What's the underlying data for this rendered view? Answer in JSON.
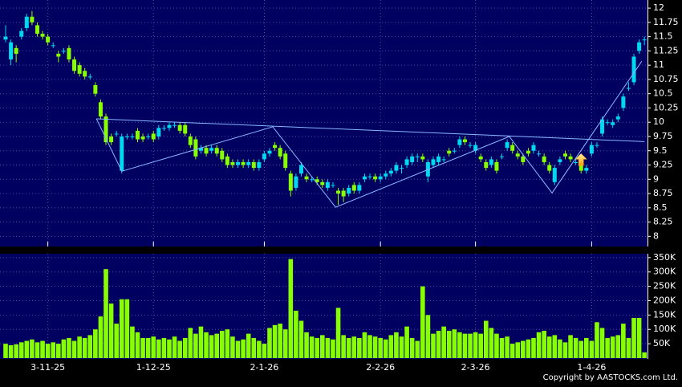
{
  "chart_data": {
    "type": "candlestick",
    "categories": [
      null,
      null,
      null,
      null,
      null,
      null,
      null,
      null,
      "3-11-25",
      null,
      null,
      null,
      null,
      null,
      null,
      null,
      null,
      null,
      null,
      null,
      null,
      null,
      null,
      null,
      null,
      null,
      null,
      null,
      "1-12-25",
      null,
      null,
      null,
      null,
      null,
      null,
      null,
      null,
      null,
      null,
      null,
      null,
      null,
      null,
      null,
      null,
      null,
      null,
      null,
      null,
      "2-1-26",
      null,
      null,
      null,
      null,
      null,
      null,
      null,
      null,
      null,
      null,
      null,
      null,
      null,
      null,
      null,
      null,
      null,
      null,
      null,
      null,
      null,
      "2-2-26",
      null,
      null,
      null,
      null,
      null,
      null,
      null,
      null,
      null,
      null,
      null,
      null,
      null,
      null,
      null,
      null,
      null,
      "2-3-26",
      null,
      null,
      null,
      null,
      null,
      null,
      null,
      null,
      null,
      null,
      null,
      null,
      null,
      null,
      null,
      null,
      null,
      null,
      null,
      null,
      null,
      "1-4-26",
      null,
      null,
      null,
      null,
      null,
      null,
      null,
      null,
      null,
      null
    ],
    "candles": [
      [
        11.45,
        11.7,
        11.4,
        11.5
      ],
      [
        11.1,
        11.45,
        11.0,
        11.4
      ],
      [
        11.3,
        11.35,
        11.05,
        11.2
      ],
      [
        11.5,
        11.65,
        11.45,
        11.6
      ],
      [
        11.65,
        11.9,
        11.6,
        11.85
      ],
      [
        11.85,
        11.95,
        11.7,
        11.75
      ],
      [
        11.7,
        11.75,
        11.5,
        11.55
      ],
      [
        11.55,
        11.6,
        11.45,
        11.5
      ],
      [
        11.5,
        11.55,
        11.35,
        11.4
      ],
      [
        11.35,
        11.4,
        11.3,
        11.35
      ],
      [
        11.2,
        11.25,
        11.05,
        11.15
      ],
      [
        11.25,
        11.3,
        11.2,
        11.25
      ],
      [
        11.3,
        11.35,
        11.05,
        11.1
      ],
      [
        11.1,
        11.15,
        10.85,
        10.9
      ],
      [
        11.0,
        11.05,
        10.8,
        10.85
      ],
      [
        10.9,
        10.95,
        10.75,
        10.8
      ],
      [
        10.8,
        10.85,
        10.75,
        10.8
      ],
      [
        10.65,
        10.7,
        10.45,
        10.5
      ],
      [
        10.35,
        10.4,
        10.05,
        10.1
      ],
      [
        10.1,
        10.15,
        9.6,
        9.65
      ],
      [
        9.75,
        9.8,
        9.6,
        9.65
      ],
      [
        9.8,
        9.85,
        9.75,
        9.8
      ],
      [
        9.15,
        9.8,
        9.1,
        9.75
      ],
      [
        9.75,
        9.8,
        9.7,
        9.75
      ],
      [
        9.75,
        9.8,
        9.7,
        9.75
      ],
      [
        9.85,
        9.9,
        9.65,
        9.7
      ],
      [
        9.75,
        9.8,
        9.65,
        9.7
      ],
      [
        9.75,
        9.8,
        9.7,
        9.75
      ],
      [
        9.8,
        9.85,
        9.65,
        9.7
      ],
      [
        9.75,
        9.95,
        9.7,
        9.9
      ],
      [
        9.9,
        9.95,
        9.85,
        9.9
      ],
      [
        9.9,
        10.0,
        9.85,
        9.95
      ],
      [
        9.95,
        10.0,
        9.9,
        9.95
      ],
      [
        9.95,
        10.0,
        9.8,
        9.85
      ],
      [
        9.95,
        10.0,
        9.75,
        9.8
      ],
      [
        9.75,
        9.8,
        9.55,
        9.6
      ],
      [
        9.7,
        9.75,
        9.35,
        9.4
      ],
      [
        9.5,
        9.6,
        9.45,
        9.55
      ],
      [
        9.55,
        9.6,
        9.4,
        9.45
      ],
      [
        9.5,
        9.6,
        9.45,
        9.55
      ],
      [
        9.55,
        9.6,
        9.4,
        9.45
      ],
      [
        9.5,
        9.55,
        9.3,
        9.35
      ],
      [
        9.4,
        9.45,
        9.2,
        9.25
      ],
      [
        9.3,
        9.35,
        9.2,
        9.25
      ],
      [
        9.25,
        9.35,
        9.2,
        9.3
      ],
      [
        9.3,
        9.35,
        9.2,
        9.25
      ],
      [
        9.25,
        9.35,
        9.2,
        9.3
      ],
      [
        9.3,
        9.35,
        9.15,
        9.2
      ],
      [
        9.2,
        9.35,
        9.15,
        9.3
      ],
      [
        9.35,
        9.5,
        9.3,
        9.45
      ],
      [
        9.45,
        9.55,
        9.4,
        9.5
      ],
      [
        9.6,
        9.65,
        9.5,
        9.55
      ],
      [
        9.55,
        9.6,
        9.35,
        9.4
      ],
      [
        9.45,
        9.5,
        9.15,
        9.2
      ],
      [
        9.1,
        9.15,
        8.7,
        8.8
      ],
      [
        8.85,
        9.1,
        8.8,
        9.05
      ],
      [
        9.1,
        9.3,
        9.05,
        9.25
      ],
      [
        9.05,
        9.1,
        8.95,
        9.0
      ],
      [
        9.0,
        9.05,
        8.95,
        9.0
      ],
      [
        9.0,
        9.05,
        8.9,
        8.95
      ],
      [
        8.95,
        9.0,
        8.85,
        8.9
      ],
      [
        8.85,
        9.0,
        8.8,
        8.95
      ],
      [
        8.9,
        8.95,
        8.85,
        8.9
      ],
      [
        8.8,
        8.85,
        8.55,
        8.75
      ],
      [
        8.8,
        8.85,
        8.6,
        8.7
      ],
      [
        8.75,
        8.9,
        8.7,
        8.85
      ],
      [
        8.9,
        8.95,
        8.75,
        8.8
      ],
      [
        8.8,
        8.95,
        8.75,
        8.9
      ],
      [
        9.0,
        9.1,
        8.95,
        9.05
      ],
      [
        9.05,
        9.1,
        9.0,
        9.05
      ],
      [
        9.05,
        9.1,
        8.95,
        9.0
      ],
      [
        9.0,
        9.1,
        8.95,
        9.05
      ],
      [
        9.05,
        9.15,
        9.0,
        9.1
      ],
      [
        9.1,
        9.2,
        9.05,
        9.15
      ],
      [
        9.15,
        9.3,
        9.1,
        9.25
      ],
      [
        9.2,
        9.25,
        9.1,
        9.2
      ],
      [
        9.25,
        9.4,
        9.2,
        9.35
      ],
      [
        9.3,
        9.45,
        9.25,
        9.4
      ],
      [
        9.4,
        9.45,
        9.3,
        9.4
      ],
      [
        9.4,
        9.45,
        9.3,
        9.35
      ],
      [
        9.05,
        9.35,
        8.95,
        9.3
      ],
      [
        9.25,
        9.4,
        9.2,
        9.35
      ],
      [
        9.3,
        9.45,
        9.25,
        9.4
      ],
      [
        9.35,
        9.4,
        9.3,
        9.35
      ],
      [
        9.5,
        9.55,
        9.4,
        9.45
      ],
      [
        9.5,
        9.55,
        9.45,
        9.5
      ],
      [
        9.6,
        9.75,
        9.55,
        9.7
      ],
      [
        9.7,
        9.75,
        9.6,
        9.65
      ],
      [
        9.6,
        9.65,
        9.55,
        9.6
      ],
      [
        9.5,
        9.65,
        9.45,
        9.6
      ],
      [
        9.4,
        9.45,
        9.3,
        9.35
      ],
      [
        9.3,
        9.35,
        9.15,
        9.2
      ],
      [
        9.25,
        9.4,
        9.2,
        9.35
      ],
      [
        9.3,
        9.35,
        9.1,
        9.15
      ],
      [
        9.4,
        9.45,
        9.35,
        9.4
      ],
      [
        9.55,
        9.7,
        9.5,
        9.65
      ],
      [
        9.6,
        9.65,
        9.45,
        9.5
      ],
      [
        9.45,
        9.5,
        9.35,
        9.4
      ],
      [
        9.4,
        9.45,
        9.25,
        9.3
      ],
      [
        9.5,
        9.55,
        9.4,
        9.45
      ],
      [
        9.5,
        9.65,
        9.45,
        9.6
      ],
      [
        9.45,
        9.5,
        9.4,
        9.45
      ],
      [
        9.4,
        9.45,
        9.25,
        9.3
      ],
      [
        9.25,
        9.3,
        9.1,
        9.15
      ],
      [
        8.95,
        9.25,
        8.9,
        9.2
      ],
      [
        9.3,
        9.4,
        9.25,
        9.35
      ],
      [
        9.45,
        9.5,
        9.35,
        9.4
      ],
      [
        9.4,
        9.45,
        9.3,
        9.35
      ],
      [
        9.3,
        9.35,
        9.25,
        9.3
      ],
      [
        9.25,
        9.3,
        9.1,
        9.15
      ],
      [
        9.15,
        9.25,
        9.1,
        9.2
      ],
      [
        9.45,
        9.65,
        9.4,
        9.6
      ],
      [
        9.6,
        9.65,
        9.55,
        9.6
      ],
      [
        9.8,
        10.1,
        9.75,
        10.05
      ],
      [
        10.0,
        10.05,
        9.95,
        10.0
      ],
      [
        9.95,
        10.05,
        9.9,
        10.0
      ],
      [
        10.05,
        10.15,
        10.0,
        10.1
      ],
      [
        10.25,
        10.5,
        10.2,
        10.45
      ],
      [
        10.6,
        10.7,
        10.55,
        10.6
      ],
      [
        10.7,
        11.2,
        10.65,
        11.15
      ],
      [
        11.25,
        11.45,
        11.2,
        11.4
      ],
      [
        11.45,
        11.5,
        11.35,
        11.45
      ]
    ],
    "volume": [
      50000,
      45000,
      48000,
      55000,
      60000,
      65000,
      55000,
      60000,
      50000,
      55000,
      50000,
      65000,
      70000,
      60000,
      75000,
      70000,
      80000,
      100000,
      145000,
      310000,
      190000,
      120000,
      205000,
      205000,
      110000,
      90000,
      70000,
      70000,
      75000,
      65000,
      70000,
      65000,
      75000,
      60000,
      70000,
      105000,
      85000,
      110000,
      90000,
      80000,
      85000,
      95000,
      100000,
      75000,
      60000,
      65000,
      85000,
      70000,
      60000,
      50000,
      105000,
      115000,
      120000,
      100000,
      345000,
      165000,
      130000,
      90000,
      75000,
      70000,
      80000,
      70000,
      65000,
      175000,
      80000,
      70000,
      75000,
      70000,
      90000,
      80000,
      75000,
      70000,
      65000,
      80000,
      90000,
      75000,
      110000,
      70000,
      60000,
      250000,
      150000,
      85000,
      95000,
      110000,
      95000,
      100000,
      90000,
      85000,
      85000,
      90000,
      85000,
      130000,
      105000,
      85000,
      70000,
      75000,
      50000,
      55000,
      60000,
      65000,
      70000,
      90000,
      95000,
      75000,
      80000,
      65000,
      55000,
      80000,
      70000,
      60000,
      70000,
      60000,
      125000,
      105000,
      70000,
      75000,
      80000,
      120000,
      70000,
      140000,
      140000,
      20000
    ],
    "ylim": [
      7.85,
      12.1
    ],
    "yticks": [
      8,
      8.25,
      8.5,
      8.75,
      9,
      9.25,
      9.5,
      9.75,
      10,
      10.25,
      10.5,
      10.75,
      11,
      11.25,
      11.5,
      11.75,
      12
    ],
    "volume_ylim": [
      0,
      358000
    ],
    "volume_yticks": [
      {
        "value": 50000,
        "label": "50K"
      },
      {
        "value": 100000,
        "label": "100K"
      },
      {
        "value": 150000,
        "label": "150K"
      },
      {
        "value": 200000,
        "label": "200K"
      },
      {
        "value": 250000,
        "label": "250K"
      },
      {
        "value": 300000,
        "label": "300K"
      },
      {
        "value": 350000,
        "label": "350K"
      }
    ],
    "up_color": "#00d8f0",
    "down_color": "#88ff00",
    "volume_color": "#88ff00",
    "grid": true,
    "trendlines": [
      {
        "color": "#8ab8ff",
        "points": [
          [
            17.2,
            10.06
          ],
          [
            121,
            9.66
          ]
        ]
      },
      {
        "color": "#8ab8ff",
        "points": [
          [
            17.2,
            10.06
          ],
          [
            22,
            9.14
          ],
          [
            50.6,
            9.92
          ],
          [
            62.5,
            8.51
          ],
          [
            95.4,
            9.75
          ],
          [
            103.5,
            8.76
          ],
          [
            120.5,
            11.07
          ]
        ]
      }
    ],
    "markers": [
      {
        "index": 109,
        "value": 9.45,
        "color": "#ffb020"
      }
    ],
    "credit": "Copyright by AASTOCKS.com Ltd."
  }
}
